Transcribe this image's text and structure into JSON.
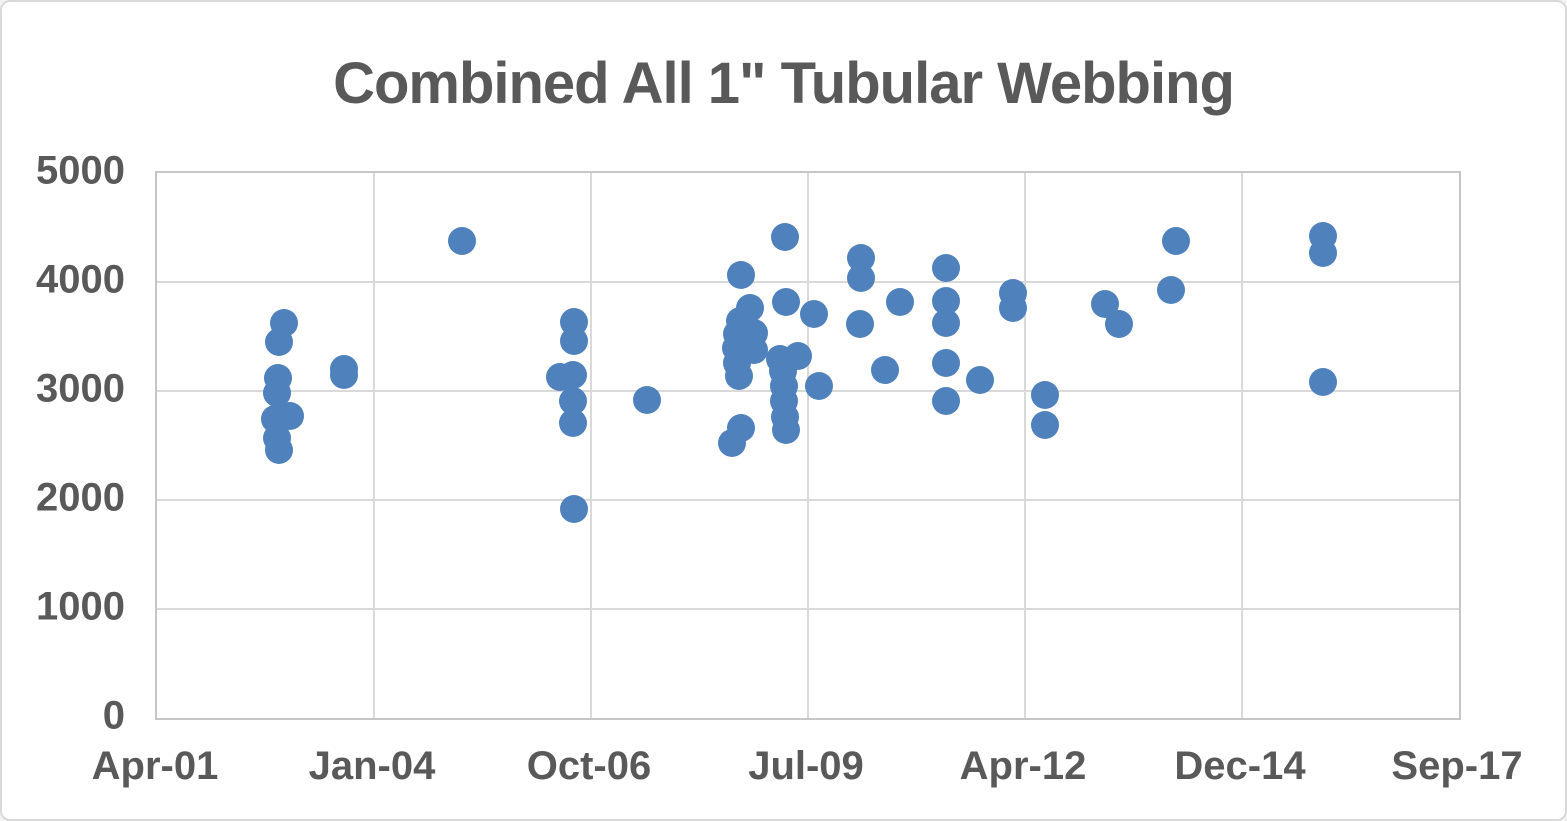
{
  "chart_data": {
    "type": "scatter",
    "title": "Combined All 1\" Tubular Webbing",
    "legend": "none",
    "grid": true,
    "marker_color": "#4f81bd",
    "x_axis": {
      "kind": "date",
      "start_date": "2001-04-01",
      "span_days": 6000,
      "tick_interval_days": 1000,
      "tick_labels": [
        "Apr-01",
        "Jan-04",
        "Oct-06",
        "Jul-09",
        "Apr-12",
        "Dec-14",
        "Sep-17"
      ]
    },
    "y_axis": {
      "min": 0,
      "max": 5000,
      "tick_step": 1000,
      "tick_labels": [
        "0",
        "1000",
        "2000",
        "3000",
        "4000",
        "5000"
      ]
    },
    "points": [
      {
        "date": "2002-09-29",
        "value": 2740
      },
      {
        "date": "2002-10-06",
        "value": 2985
      },
      {
        "date": "2002-10-06",
        "value": 2570
      },
      {
        "date": "2002-10-09",
        "value": 3120
      },
      {
        "date": "2002-10-14",
        "value": 3450
      },
      {
        "date": "2002-10-14",
        "value": 2460
      },
      {
        "date": "2002-11-09",
        "value": 3620
      },
      {
        "date": "2002-12-07",
        "value": 2770
      },
      {
        "date": "2003-08-13",
        "value": 3205
      },
      {
        "date": "2003-08-13",
        "value": 3145
      },
      {
        "date": "2005-02-03",
        "value": 4380
      },
      {
        "date": "2006-04-30",
        "value": 3130
      },
      {
        "date": "2006-07-01",
        "value": 3150
      },
      {
        "date": "2006-07-01",
        "value": 2905
      },
      {
        "date": "2006-07-01",
        "value": 2705
      },
      {
        "date": "2006-07-04",
        "value": 3630
      },
      {
        "date": "2006-07-04",
        "value": 3455
      },
      {
        "date": "2006-07-07",
        "value": 1915
      },
      {
        "date": "2007-06-05",
        "value": 2915
      },
      {
        "date": "2008-07-02",
        "value": 2520
      },
      {
        "date": "2008-07-19",
        "value": 3395
      },
      {
        "date": "2008-07-26",
        "value": 3520
      },
      {
        "date": "2008-07-26",
        "value": 3255
      },
      {
        "date": "2008-08-02",
        "value": 3135
      },
      {
        "date": "2008-08-08",
        "value": 3640
      },
      {
        "date": "2008-08-13",
        "value": 4060
      },
      {
        "date": "2008-08-13",
        "value": 2660
      },
      {
        "date": "2008-09-26",
        "value": 3765
      },
      {
        "date": "2008-10-11",
        "value": 3530
      },
      {
        "date": "2008-10-11",
        "value": 3380
      },
      {
        "date": "2009-02-08",
        "value": 3295
      },
      {
        "date": "2009-02-23",
        "value": 3180
      },
      {
        "date": "2009-02-26",
        "value": 3045
      },
      {
        "date": "2009-03-01",
        "value": 2905
      },
      {
        "date": "2009-03-05",
        "value": 2760
      },
      {
        "date": "2009-03-06",
        "value": 4415
      },
      {
        "date": "2009-03-09",
        "value": 3815
      },
      {
        "date": "2009-03-10",
        "value": 2640
      },
      {
        "date": "2009-05-03",
        "value": 3320
      },
      {
        "date": "2009-07-17",
        "value": 3710
      },
      {
        "date": "2009-08-06",
        "value": 3045
      },
      {
        "date": "2010-02-11",
        "value": 3615
      },
      {
        "date": "2010-02-16",
        "value": 4220
      },
      {
        "date": "2010-02-16",
        "value": 4040
      },
      {
        "date": "2010-06-10",
        "value": 3190
      },
      {
        "date": "2010-08-15",
        "value": 3815
      },
      {
        "date": "2011-03-18",
        "value": 4130
      },
      {
        "date": "2011-03-18",
        "value": 3825
      },
      {
        "date": "2011-03-18",
        "value": 3625
      },
      {
        "date": "2011-03-18",
        "value": 3260
      },
      {
        "date": "2011-03-18",
        "value": 2905
      },
      {
        "date": "2011-08-18",
        "value": 3105
      },
      {
        "date": "2012-01-17",
        "value": 3900
      },
      {
        "date": "2012-01-17",
        "value": 3765
      },
      {
        "date": "2012-06-16",
        "value": 2965
      },
      {
        "date": "2012-06-16",
        "value": 2690
      },
      {
        "date": "2013-03-16",
        "value": 3800
      },
      {
        "date": "2013-05-19",
        "value": 3615
      },
      {
        "date": "2014-01-15",
        "value": 3925
      },
      {
        "date": "2014-02-09",
        "value": 4375
      },
      {
        "date": "2015-12-17",
        "value": 4420
      },
      {
        "date": "2015-12-17",
        "value": 4265
      },
      {
        "date": "2015-12-17",
        "value": 3080
      }
    ]
  },
  "colors": {
    "background": "#ffffff",
    "outer_border": "#d9d9d9",
    "text": "#595959",
    "gridline": "#d9d9d9",
    "plot_border": "#c6c6c6",
    "marker": "#4f81bd"
  }
}
